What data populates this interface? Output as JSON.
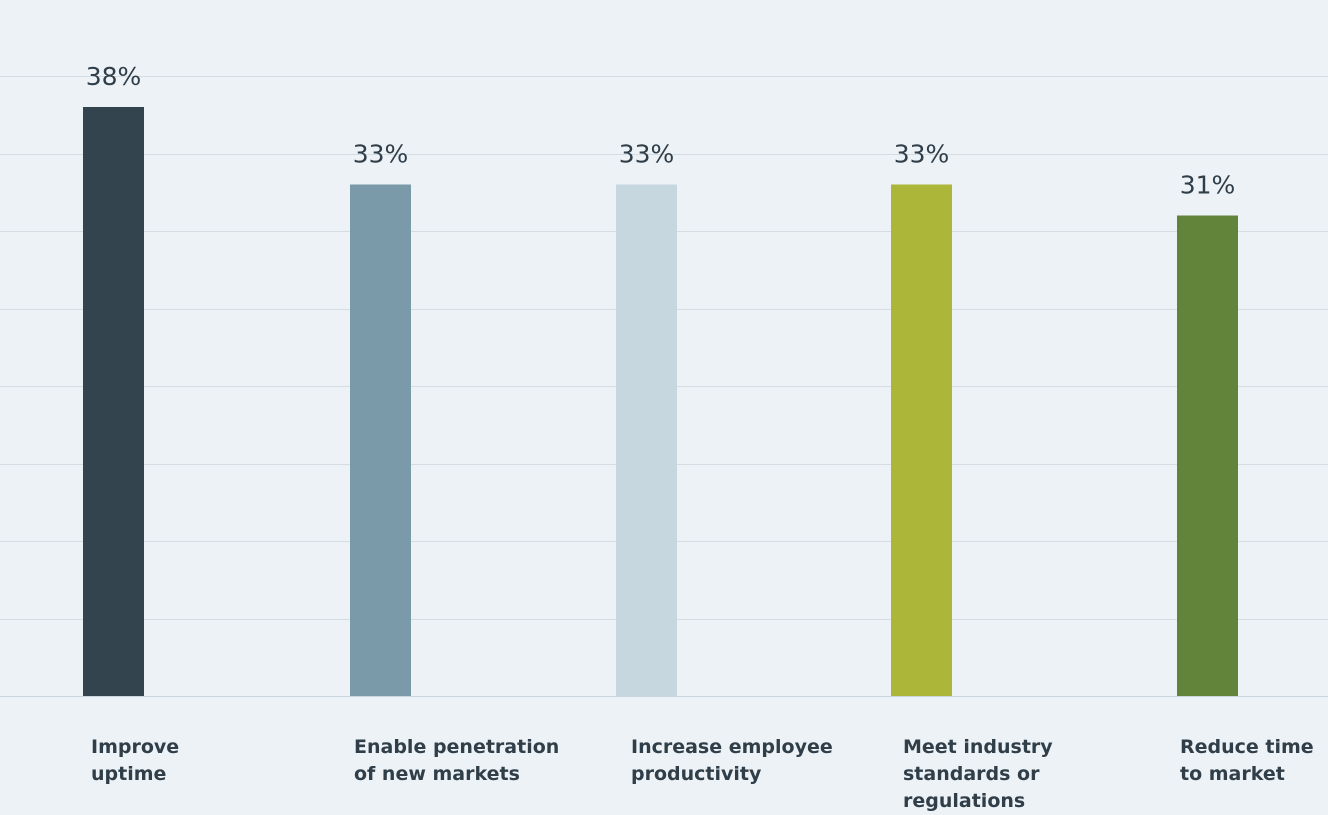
{
  "chart_data": {
    "type": "bar",
    "categories": [
      "Improve\nuptime",
      "Enable penetration\nof new markets",
      "Increase employee\nproductivity",
      "Meet industry\nstandards or\nregulations",
      "Reduce time\nto market"
    ],
    "values": [
      38,
      33,
      33,
      33,
      31
    ],
    "value_labels": [
      "38%",
      "33%",
      "33%",
      "33%",
      "31%"
    ],
    "colors": [
      "#33444e",
      "#7a9aa9",
      "#c6d7df",
      "#acb638",
      "#62833a"
    ],
    "title": "",
    "xlabel": "",
    "ylabel": "",
    "ylim": [
      0,
      45
    ],
    "grid": true,
    "legend": "none"
  }
}
